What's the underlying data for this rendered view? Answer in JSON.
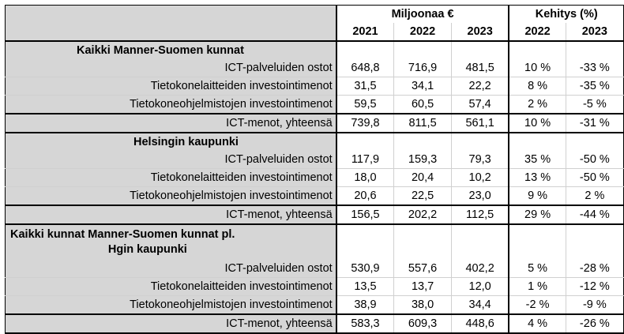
{
  "header": {
    "group_million": "Miljoonaa €",
    "group_growth": "Kehitys (%)",
    "years": [
      "2021",
      "2022",
      "2023"
    ],
    "growth_years": [
      "2022",
      "2023"
    ]
  },
  "sections": [
    {
      "title": "Kaikki Manner-Suomen kunnat",
      "rows": [
        {
          "label": "ICT-palveluiden ostot",
          "v2021": "648,8",
          "v2022": "716,9",
          "v2023": "481,5",
          "g2022": "10 %",
          "g2023": "-33 %"
        },
        {
          "label": "Tietokonelaitteiden investointimenot",
          "v2021": "31,5",
          "v2022": "34,1",
          "v2023": "22,2",
          "g2022": "8 %",
          "g2023": "-35 %"
        },
        {
          "label": "Tietokoneohjelmistojen investointimenot",
          "v2021": "59,5",
          "v2022": "60,5",
          "v2023": "57,4",
          "g2022": "2 %",
          "g2023": "-5 %"
        }
      ],
      "total": {
        "label": "ICT-menot, yhteensä",
        "v2021": "739,8",
        "v2022": "811,5",
        "v2023": "561,1",
        "g2022": "10 %",
        "g2023": "-31 %"
      }
    },
    {
      "title": "Helsingin kaupunki",
      "rows": [
        {
          "label": "ICT-palveluiden ostot",
          "v2021": "117,9",
          "v2022": "159,3",
          "v2023": "79,3",
          "g2022": "35 %",
          "g2023": "-50 %"
        },
        {
          "label": "Tietokonelaitteiden investointimenot",
          "v2021": "18,0",
          "v2022": "20,4",
          "v2023": "10,2",
          "g2022": "13 %",
          "g2023": "-50 %"
        },
        {
          "label": "Tietokoneohjelmistojen investointimenot",
          "v2021": "20,6",
          "v2022": "22,5",
          "v2023": "23,0",
          "g2022": "9 %",
          "g2023": "2 %"
        }
      ],
      "total": {
        "label": "ICT-menot, yhteensä",
        "v2021": "156,5",
        "v2022": "202,2",
        "v2023": "112,5",
        "g2022": "29 %",
        "g2023": "-44 %"
      }
    },
    {
      "title_line1": "Kaikki kunnat Manner-Suomen kunnat pl.",
      "title_line2": "Hgin kaupunki",
      "rows": [
        {
          "label": "ICT-palveluiden ostot",
          "v2021": "530,9",
          "v2022": "557,6",
          "v2023": "402,2",
          "g2022": "5 %",
          "g2023": "-28 %"
        },
        {
          "label": "Tietokonelaitteiden investointimenot",
          "v2021": "13,5",
          "v2022": "13,7",
          "v2023": "12,0",
          "g2022": "1 %",
          "g2023": "-12 %"
        },
        {
          "label": "Tietokoneohjelmistojen investointimenot",
          "v2021": "38,9",
          "v2022": "38,0",
          "v2023": "34,4",
          "g2022": "-2 %",
          "g2023": "-9 %"
        }
      ],
      "total": {
        "label": "ICT-menot, yhteensä",
        "v2021": "583,3",
        "v2022": "609,3",
        "v2023": "448,6",
        "g2022": "4 %",
        "g2023": "-26 %"
      }
    }
  ]
}
